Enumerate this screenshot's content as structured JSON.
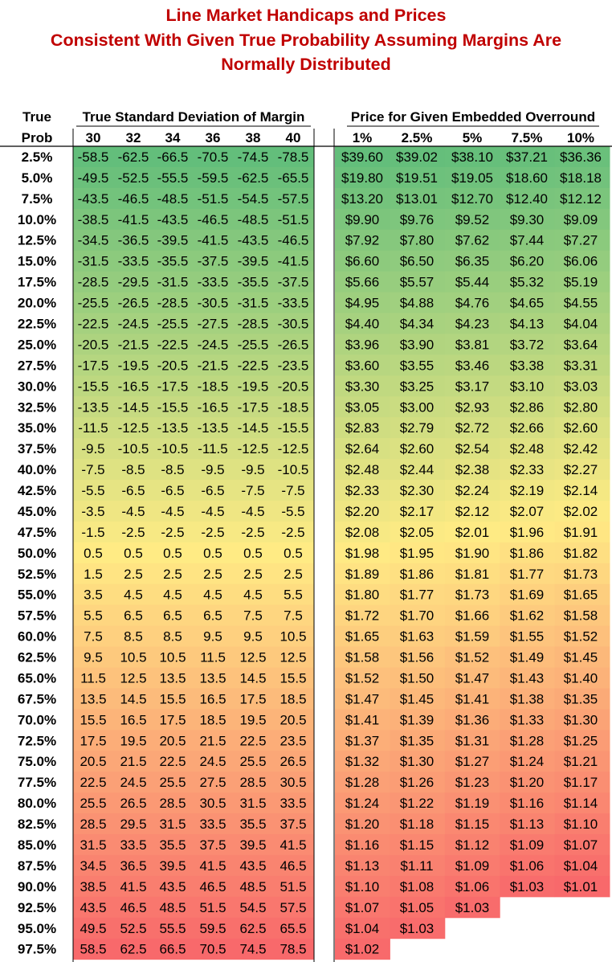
{
  "colors": {
    "title": "#c00000",
    "scale_low": "#63be7b",
    "scale_mid": "#ffeb84",
    "scale_high": "#f8696b"
  },
  "title_lines": [
    "Line Market Handicaps and Prices",
    "Consistent With Given True Probability Assuming Margins Are",
    "Normally Distributed"
  ],
  "chart_data": {
    "type": "table",
    "title": "Line Market Handicaps and Prices Consistent With Given True Probability Assuming Margins Are Normally Distributed",
    "row_header": [
      "True",
      "Prob"
    ],
    "sd_group_label": "True Standard Deviation of Margin",
    "price_group_label": "Price for Given Embedded Overround",
    "sd_columns": [
      "30",
      "32",
      "34",
      "36",
      "38",
      "40"
    ],
    "overround_columns": [
      "1%",
      "2.5%",
      "5%",
      "7.5%",
      "10%"
    ],
    "rows": [
      {
        "prob": "2.5%",
        "handicaps": [
          "-58.5",
          "-62.5",
          "-66.5",
          "-70.5",
          "-74.5",
          "-78.5"
        ],
        "prices": [
          "$39.60",
          "$39.02",
          "$38.10",
          "$37.21",
          "$36.36"
        ]
      },
      {
        "prob": "5.0%",
        "handicaps": [
          "-49.5",
          "-52.5",
          "-55.5",
          "-59.5",
          "-62.5",
          "-65.5"
        ],
        "prices": [
          "$19.80",
          "$19.51",
          "$19.05",
          "$18.60",
          "$18.18"
        ]
      },
      {
        "prob": "7.5%",
        "handicaps": [
          "-43.5",
          "-46.5",
          "-48.5",
          "-51.5",
          "-54.5",
          "-57.5"
        ],
        "prices": [
          "$13.20",
          "$13.01",
          "$12.70",
          "$12.40",
          "$12.12"
        ]
      },
      {
        "prob": "10.0%",
        "handicaps": [
          "-38.5",
          "-41.5",
          "-43.5",
          "-46.5",
          "-48.5",
          "-51.5"
        ],
        "prices": [
          "$9.90",
          "$9.76",
          "$9.52",
          "$9.30",
          "$9.09"
        ]
      },
      {
        "prob": "12.5%",
        "handicaps": [
          "-34.5",
          "-36.5",
          "-39.5",
          "-41.5",
          "-43.5",
          "-46.5"
        ],
        "prices": [
          "$7.92",
          "$7.80",
          "$7.62",
          "$7.44",
          "$7.27"
        ]
      },
      {
        "prob": "15.0%",
        "handicaps": [
          "-31.5",
          "-33.5",
          "-35.5",
          "-37.5",
          "-39.5",
          "-41.5"
        ],
        "prices": [
          "$6.60",
          "$6.50",
          "$6.35",
          "$6.20",
          "$6.06"
        ]
      },
      {
        "prob": "17.5%",
        "handicaps": [
          "-28.5",
          "-29.5",
          "-31.5",
          "-33.5",
          "-35.5",
          "-37.5"
        ],
        "prices": [
          "$5.66",
          "$5.57",
          "$5.44",
          "$5.32",
          "$5.19"
        ]
      },
      {
        "prob": "20.0%",
        "handicaps": [
          "-25.5",
          "-26.5",
          "-28.5",
          "-30.5",
          "-31.5",
          "-33.5"
        ],
        "prices": [
          "$4.95",
          "$4.88",
          "$4.76",
          "$4.65",
          "$4.55"
        ]
      },
      {
        "prob": "22.5%",
        "handicaps": [
          "-22.5",
          "-24.5",
          "-25.5",
          "-27.5",
          "-28.5",
          "-30.5"
        ],
        "prices": [
          "$4.40",
          "$4.34",
          "$4.23",
          "$4.13",
          "$4.04"
        ]
      },
      {
        "prob": "25.0%",
        "handicaps": [
          "-20.5",
          "-21.5",
          "-22.5",
          "-24.5",
          "-25.5",
          "-26.5"
        ],
        "prices": [
          "$3.96",
          "$3.90",
          "$3.81",
          "$3.72",
          "$3.64"
        ]
      },
      {
        "prob": "27.5%",
        "handicaps": [
          "-17.5",
          "-19.5",
          "-20.5",
          "-21.5",
          "-22.5",
          "-23.5"
        ],
        "prices": [
          "$3.60",
          "$3.55",
          "$3.46",
          "$3.38",
          "$3.31"
        ]
      },
      {
        "prob": "30.0%",
        "handicaps": [
          "-15.5",
          "-16.5",
          "-17.5",
          "-18.5",
          "-19.5",
          "-20.5"
        ],
        "prices": [
          "$3.30",
          "$3.25",
          "$3.17",
          "$3.10",
          "$3.03"
        ]
      },
      {
        "prob": "32.5%",
        "handicaps": [
          "-13.5",
          "-14.5",
          "-15.5",
          "-16.5",
          "-17.5",
          "-18.5"
        ],
        "prices": [
          "$3.05",
          "$3.00",
          "$2.93",
          "$2.86",
          "$2.80"
        ]
      },
      {
        "prob": "35.0%",
        "handicaps": [
          "-11.5",
          "-12.5",
          "-13.5",
          "-13.5",
          "-14.5",
          "-15.5"
        ],
        "prices": [
          "$2.83",
          "$2.79",
          "$2.72",
          "$2.66",
          "$2.60"
        ]
      },
      {
        "prob": "37.5%",
        "handicaps": [
          "-9.5",
          "-10.5",
          "-10.5",
          "-11.5",
          "-12.5",
          "-12.5"
        ],
        "prices": [
          "$2.64",
          "$2.60",
          "$2.54",
          "$2.48",
          "$2.42"
        ]
      },
      {
        "prob": "40.0%",
        "handicaps": [
          "-7.5",
          "-8.5",
          "-8.5",
          "-9.5",
          "-9.5",
          "-10.5"
        ],
        "prices": [
          "$2.48",
          "$2.44",
          "$2.38",
          "$2.33",
          "$2.27"
        ]
      },
      {
        "prob": "42.5%",
        "handicaps": [
          "-5.5",
          "-6.5",
          "-6.5",
          "-6.5",
          "-7.5",
          "-7.5"
        ],
        "prices": [
          "$2.33",
          "$2.30",
          "$2.24",
          "$2.19",
          "$2.14"
        ]
      },
      {
        "prob": "45.0%",
        "handicaps": [
          "-3.5",
          "-4.5",
          "-4.5",
          "-4.5",
          "-4.5",
          "-5.5"
        ],
        "prices": [
          "$2.20",
          "$2.17",
          "$2.12",
          "$2.07",
          "$2.02"
        ]
      },
      {
        "prob": "47.5%",
        "handicaps": [
          "-1.5",
          "-2.5",
          "-2.5",
          "-2.5",
          "-2.5",
          "-2.5"
        ],
        "prices": [
          "$2.08",
          "$2.05",
          "$2.01",
          "$1.96",
          "$1.91"
        ]
      },
      {
        "prob": "50.0%",
        "handicaps": [
          "0.5",
          "0.5",
          "0.5",
          "0.5",
          "0.5",
          "0.5"
        ],
        "prices": [
          "$1.98",
          "$1.95",
          "$1.90",
          "$1.86",
          "$1.82"
        ]
      },
      {
        "prob": "52.5%",
        "handicaps": [
          "1.5",
          "2.5",
          "2.5",
          "2.5",
          "2.5",
          "2.5"
        ],
        "prices": [
          "$1.89",
          "$1.86",
          "$1.81",
          "$1.77",
          "$1.73"
        ]
      },
      {
        "prob": "55.0%",
        "handicaps": [
          "3.5",
          "4.5",
          "4.5",
          "4.5",
          "4.5",
          "5.5"
        ],
        "prices": [
          "$1.80",
          "$1.77",
          "$1.73",
          "$1.69",
          "$1.65"
        ]
      },
      {
        "prob": "57.5%",
        "handicaps": [
          "5.5",
          "6.5",
          "6.5",
          "6.5",
          "7.5",
          "7.5"
        ],
        "prices": [
          "$1.72",
          "$1.70",
          "$1.66",
          "$1.62",
          "$1.58"
        ]
      },
      {
        "prob": "60.0%",
        "handicaps": [
          "7.5",
          "8.5",
          "8.5",
          "9.5",
          "9.5",
          "10.5"
        ],
        "prices": [
          "$1.65",
          "$1.63",
          "$1.59",
          "$1.55",
          "$1.52"
        ]
      },
      {
        "prob": "62.5%",
        "handicaps": [
          "9.5",
          "10.5",
          "10.5",
          "11.5",
          "12.5",
          "12.5"
        ],
        "prices": [
          "$1.58",
          "$1.56",
          "$1.52",
          "$1.49",
          "$1.45"
        ]
      },
      {
        "prob": "65.0%",
        "handicaps": [
          "11.5",
          "12.5",
          "13.5",
          "13.5",
          "14.5",
          "15.5"
        ],
        "prices": [
          "$1.52",
          "$1.50",
          "$1.47",
          "$1.43",
          "$1.40"
        ]
      },
      {
        "prob": "67.5%",
        "handicaps": [
          "13.5",
          "14.5",
          "15.5",
          "16.5",
          "17.5",
          "18.5"
        ],
        "prices": [
          "$1.47",
          "$1.45",
          "$1.41",
          "$1.38",
          "$1.35"
        ]
      },
      {
        "prob": "70.0%",
        "handicaps": [
          "15.5",
          "16.5",
          "17.5",
          "18.5",
          "19.5",
          "20.5"
        ],
        "prices": [
          "$1.41",
          "$1.39",
          "$1.36",
          "$1.33",
          "$1.30"
        ]
      },
      {
        "prob": "72.5%",
        "handicaps": [
          "17.5",
          "19.5",
          "20.5",
          "21.5",
          "22.5",
          "23.5"
        ],
        "prices": [
          "$1.37",
          "$1.35",
          "$1.31",
          "$1.28",
          "$1.25"
        ]
      },
      {
        "prob": "75.0%",
        "handicaps": [
          "20.5",
          "21.5",
          "22.5",
          "24.5",
          "25.5",
          "26.5"
        ],
        "prices": [
          "$1.32",
          "$1.30",
          "$1.27",
          "$1.24",
          "$1.21"
        ]
      },
      {
        "prob": "77.5%",
        "handicaps": [
          "22.5",
          "24.5",
          "25.5",
          "27.5",
          "28.5",
          "30.5"
        ],
        "prices": [
          "$1.28",
          "$1.26",
          "$1.23",
          "$1.20",
          "$1.17"
        ]
      },
      {
        "prob": "80.0%",
        "handicaps": [
          "25.5",
          "26.5",
          "28.5",
          "30.5",
          "31.5",
          "33.5"
        ],
        "prices": [
          "$1.24",
          "$1.22",
          "$1.19",
          "$1.16",
          "$1.14"
        ]
      },
      {
        "prob": "82.5%",
        "handicaps": [
          "28.5",
          "29.5",
          "31.5",
          "33.5",
          "35.5",
          "37.5"
        ],
        "prices": [
          "$1.20",
          "$1.18",
          "$1.15",
          "$1.13",
          "$1.10"
        ]
      },
      {
        "prob": "85.0%",
        "handicaps": [
          "31.5",
          "33.5",
          "35.5",
          "37.5",
          "39.5",
          "41.5"
        ],
        "prices": [
          "$1.16",
          "$1.15",
          "$1.12",
          "$1.09",
          "$1.07"
        ]
      },
      {
        "prob": "87.5%",
        "handicaps": [
          "34.5",
          "36.5",
          "39.5",
          "41.5",
          "43.5",
          "46.5"
        ],
        "prices": [
          "$1.13",
          "$1.11",
          "$1.09",
          "$1.06",
          "$1.04"
        ]
      },
      {
        "prob": "90.0%",
        "handicaps": [
          "38.5",
          "41.5",
          "43.5",
          "46.5",
          "48.5",
          "51.5"
        ],
        "prices": [
          "$1.10",
          "$1.08",
          "$1.06",
          "$1.03",
          "$1.01"
        ]
      },
      {
        "prob": "92.5%",
        "handicaps": [
          "43.5",
          "46.5",
          "48.5",
          "51.5",
          "54.5",
          "57.5"
        ],
        "prices": [
          "$1.07",
          "$1.05",
          "$1.03"
        ]
      },
      {
        "prob": "95.0%",
        "handicaps": [
          "49.5",
          "52.5",
          "55.5",
          "59.5",
          "62.5",
          "65.5"
        ],
        "prices": [
          "$1.04",
          "$1.03"
        ]
      },
      {
        "prob": "97.5%",
        "handicaps": [
          "58.5",
          "62.5",
          "66.5",
          "70.5",
          "74.5",
          "78.5"
        ],
        "prices": [
          "$1.02"
        ]
      }
    ]
  }
}
